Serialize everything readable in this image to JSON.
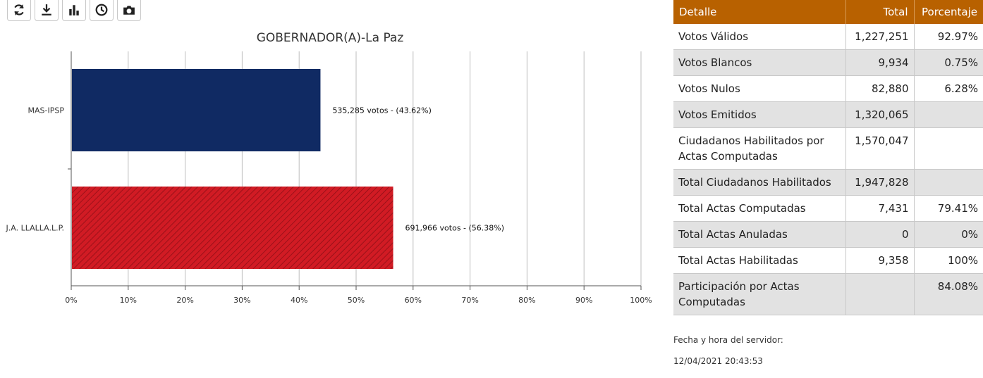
{
  "toolbar": {
    "buttons": [
      {
        "icon": "refresh-icon"
      },
      {
        "icon": "download-icon"
      },
      {
        "icon": "bar-chart-icon"
      },
      {
        "icon": "clock-icon"
      },
      {
        "icon": "camera-icon"
      }
    ]
  },
  "chart_data": {
    "type": "bar",
    "orientation": "horizontal",
    "title": "GOBERNADOR(A)-La Paz",
    "categories": [
      "MAS-IPSP",
      "J.A. LLALLA.L.P."
    ],
    "values": [
      43.62,
      56.38
    ],
    "data_labels": [
      "535,285 votos - (43.62%)",
      "691,966 votos - (56.38%)"
    ],
    "colors": [
      "#102a63",
      "#d11b24"
    ],
    "xlim": [
      0,
      100
    ],
    "x_ticks": [
      "0%",
      "10%",
      "20%",
      "30%",
      "40%",
      "50%",
      "60%",
      "70%",
      "80%",
      "90%",
      "100%"
    ],
    "grid": true
  },
  "table": {
    "headers": {
      "detalle": "Detalle",
      "total": "Total",
      "porcentaje": "Porcentaje"
    },
    "rows": [
      {
        "detalle": "Votos Válidos",
        "total": "1,227,251",
        "porcentaje": "92.97%"
      },
      {
        "detalle": "Votos Blancos",
        "total": "9,934",
        "porcentaje": "0.75%"
      },
      {
        "detalle": "Votos Nulos",
        "total": "82,880",
        "porcentaje": "6.28%"
      },
      {
        "detalle": "Votos Emitidos",
        "total": "1,320,065",
        "porcentaje": ""
      },
      {
        "detalle": "Ciudadanos Habilitados por Actas Computadas",
        "total": "1,570,047",
        "porcentaje": ""
      },
      {
        "detalle": "Total Ciudadanos Habilitados",
        "total": "1,947,828",
        "porcentaje": ""
      },
      {
        "detalle": "Total Actas Computadas",
        "total": "7,431",
        "porcentaje": "79.41%"
      },
      {
        "detalle": "Total Actas Anuladas",
        "total": "0",
        "porcentaje": "0%"
      },
      {
        "detalle": "Total Actas Habilitadas",
        "total": "9,358",
        "porcentaje": "100%"
      },
      {
        "detalle": "Participación por Actas Computadas",
        "total": "",
        "porcentaje": "84.08%"
      }
    ]
  },
  "server": {
    "label": "Fecha y hora del servidor:",
    "datetime": "12/04/2021 20:43:53"
  },
  "colors": {
    "header": "#b86100",
    "row_alt": "#e2e2e2"
  }
}
